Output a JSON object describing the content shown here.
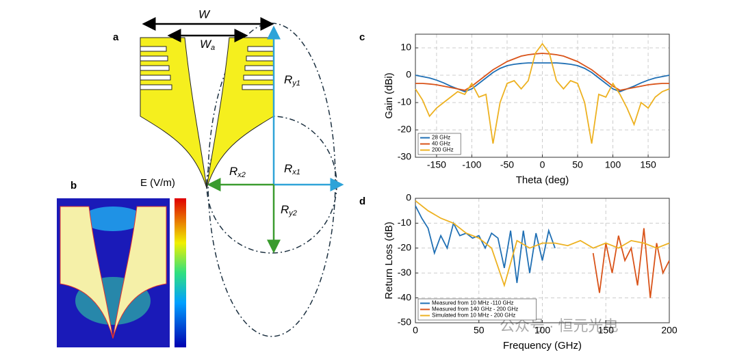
{
  "panel_a": {
    "letter": "a",
    "w": "W",
    "wa": {
      "main": "W",
      "sub": "a"
    },
    "ry1": {
      "main": "R",
      "sub": "y1"
    },
    "rx2": {
      "main": "R",
      "sub": "x2"
    },
    "rx1": {
      "main": "R",
      "sub": "x1"
    },
    "ry2": {
      "main": "R",
      "sub": "y2"
    }
  },
  "panel_b": {
    "letter": "b",
    "colorbar_label": "E (V/m)"
  },
  "watermark": "公众号 · 恒元光电",
  "chart_data": [
    {
      "type": "line",
      "panel": "c",
      "xlabel": "Theta (deg)",
      "ylabel": "Gain (dBi)",
      "xlim": [
        -180,
        180
      ],
      "ylim": [
        -30,
        15
      ],
      "xticks": [
        -150,
        -100,
        -50,
        0,
        50,
        100,
        150
      ],
      "yticks": [
        -30,
        -20,
        -10,
        0,
        10
      ],
      "grid": true,
      "legend": "lower left",
      "x": [
        -180,
        -170,
        -160,
        -150,
        -140,
        -130,
        -120,
        -110,
        -100,
        -90,
        -80,
        -70,
        -60,
        -50,
        -40,
        -30,
        -20,
        -10,
        0,
        10,
        20,
        30,
        40,
        50,
        60,
        70,
        80,
        90,
        100,
        110,
        120,
        130,
        140,
        150,
        160,
        170,
        180
      ],
      "series": [
        {
          "name": "28 GHz",
          "color": "#1f6fb4",
          "values": [
            0,
            -0.5,
            -1,
            -1.8,
            -2.8,
            -4,
            -5,
            -6,
            -5,
            -3,
            -1,
            1,
            2.5,
            3.5,
            4,
            4.3,
            4.5,
            4.5,
            4.5,
            4.5,
            4.5,
            4.3,
            4,
            3.5,
            2.5,
            1,
            -1,
            -3,
            -5,
            -6,
            -5,
            -4,
            -2.8,
            -1.8,
            -1,
            -0.5,
            0
          ]
        },
        {
          "name": "40 GHz",
          "color": "#d95319",
          "values": [
            -3,
            -3,
            -3.2,
            -3.5,
            -4,
            -4.5,
            -5,
            -5.5,
            -4,
            -2,
            0,
            2,
            3.5,
            5,
            6,
            7,
            7.5,
            7.8,
            8,
            7.8,
            7.5,
            7,
            6,
            5,
            3.5,
            2,
            0,
            -2,
            -4,
            -5.5,
            -5,
            -4.5,
            -4,
            -3.5,
            -3.2,
            -3,
            -3
          ]
        },
        {
          "name": "200 GHz",
          "color": "#edb120",
          "values": [
            -5,
            -9,
            -15,
            -12,
            -10,
            -8,
            -6,
            -7,
            -3,
            -8,
            -7,
            -25,
            -10,
            -3,
            -2,
            -5,
            -2,
            8,
            11.5,
            8,
            -2,
            -5,
            -2,
            -3,
            -10,
            -25,
            -7,
            -8,
            -3,
            -7,
            -12,
            -18,
            -10,
            -12,
            -8,
            -6,
            -5
          ]
        }
      ]
    },
    {
      "type": "line",
      "panel": "d",
      "xlabel": "Frequency (GHz)",
      "ylabel": "Return Loss (dB)",
      "xlim": [
        0,
        200
      ],
      "ylim": [
        -50,
        0
      ],
      "xticks": [
        0,
        50,
        100,
        150,
        200
      ],
      "yticks": [
        -50,
        -40,
        -30,
        -20,
        -10,
        0
      ],
      "grid": true,
      "legend": "lower left",
      "series": [
        {
          "name": "Measured from 10 MHz -110 GHz",
          "color": "#1f6fb4",
          "x": [
            0,
            5,
            10,
            15,
            20,
            25,
            30,
            35,
            40,
            45,
            50,
            55,
            60,
            65,
            70,
            75,
            80,
            85,
            90,
            95,
            100,
            105,
            110
          ],
          "values": [
            -3,
            -8,
            -12,
            -22,
            -15,
            -20,
            -10,
            -15,
            -14,
            -16,
            -15,
            -20,
            -14,
            -16,
            -28,
            -13,
            -34,
            -13,
            -30,
            -14,
            -25,
            -13,
            -20
          ]
        },
        {
          "name": "Measured from 140 GHz - 200 GHz",
          "color": "#d95319",
          "x": [
            140,
            145,
            150,
            155,
            160,
            165,
            170,
            175,
            180,
            185,
            190,
            195,
            200
          ],
          "values": [
            -22,
            -38,
            -18,
            -30,
            -15,
            -25,
            -20,
            -35,
            -12,
            -40,
            -18,
            -30,
            -25
          ]
        },
        {
          "name": "Simulated from 10 MHz - 200 GHz",
          "color": "#edb120",
          "x": [
            0,
            10,
            20,
            30,
            40,
            50,
            60,
            70,
            80,
            90,
            100,
            110,
            120,
            130,
            140,
            150,
            160,
            170,
            180,
            190,
            200
          ],
          "values": [
            -1,
            -5,
            -8,
            -10,
            -14,
            -16,
            -20,
            -35,
            -17,
            -20,
            -18,
            -18,
            -19,
            -17,
            -20,
            -18,
            -20,
            -17,
            -18,
            -20,
            -18
          ]
        }
      ]
    }
  ]
}
